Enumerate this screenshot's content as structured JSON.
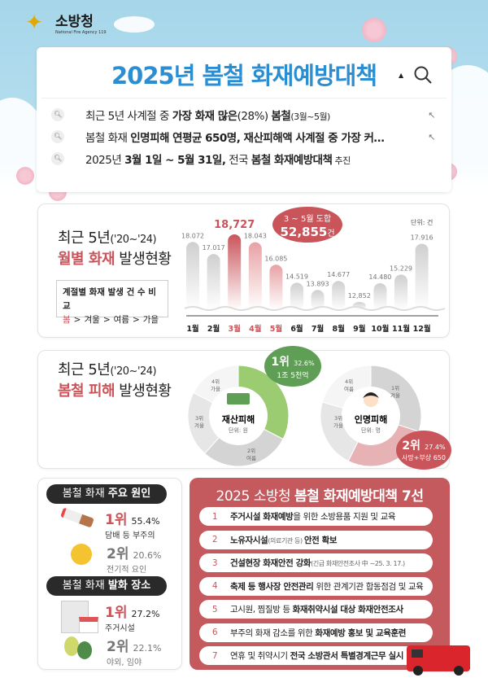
{
  "header": {
    "logo_ko": "소방청",
    "logo_en": "National Fire Agency 119"
  },
  "search": {
    "title": "2025년 봄철 화재예방대책",
    "lines": [
      {
        "pre": "최근 5년 사계절 중 ",
        "bold": "가장 화재 많은",
        "mid": "(28%) ",
        "bold2": "봄철",
        "post": "(3월~5월)"
      },
      {
        "pre": "봄철 화재 ",
        "bold": "인명피해 연평균 650명, 재산피해액 사계절 중 가장 커…",
        "mid": "",
        "bold2": "",
        "post": ""
      },
      {
        "pre": "2025년 ",
        "bold": "3월 1일 ~ 5월 31일,",
        "mid": " 전국 ",
        "bold2": "봄철 화재예방대책",
        "post": " 추진"
      }
    ]
  },
  "monthly": {
    "title_a": "최근 5년",
    "title_period": "('20~'24)",
    "title_red": "월별 화재",
    "title_rest": " 발생현황",
    "compare_title": "계절별 화재 발생 건 수 비교",
    "compare": [
      "봄",
      "겨울",
      "여름",
      "가을"
    ],
    "sep": ">",
    "bubble_top": "3 ~ 5월 도합",
    "bubble_value": "52,855",
    "bubble_unit": "건",
    "unit": "단위: 건"
  },
  "chart_data": [
    {
      "type": "bar",
      "categories": [
        "1월",
        "2월",
        "3월",
        "4월",
        "5월",
        "6월",
        "7월",
        "8월",
        "9월",
        "10월",
        "11월",
        "12월"
      ],
      "values": [
        18072,
        17017,
        18727,
        18043,
        16085,
        14519,
        13893,
        14677,
        12852,
        14480,
        15229,
        17916
      ],
      "value_labels": [
        "18.072",
        "17.017",
        "18,727",
        "18.043",
        "16.085",
        "14.519",
        "13.893",
        "14.677",
        "12,852",
        "14.480",
        "15.229",
        "17.916"
      ],
      "highlight": [
        "3월",
        "4월",
        "5월"
      ],
      "ylabel": "단위: 건"
    },
    {
      "type": "pie",
      "title": "재산피해",
      "unit": "단위: 원",
      "labels": [
        "1위 봄",
        "2위 여름",
        "3위 겨울",
        "4위 가을"
      ],
      "values": [
        32.6,
        29,
        21,
        17.4
      ],
      "known": "1위 32.6%"
    },
    {
      "type": "pie",
      "title": "인명피해",
      "unit": "단위: 명",
      "labels": [
        "1위 겨울",
        "2위 봄",
        "3위 가을",
        "4위 여름"
      ],
      "values": [
        30,
        27.4,
        22,
        20.6
      ],
      "known": "2위 27.4%"
    }
  ],
  "damage": {
    "title_a": "최근 5년",
    "title_period": "('20~'24)",
    "title_red": "봄철 피해",
    "title_rest": " 발생현황",
    "prop": {
      "label": "재산피해",
      "unit": "단위: 원",
      "seg_labels": [
        [
          "4위",
          "가을"
        ],
        [
          "3위",
          "겨울"
        ],
        [
          "2위",
          "여름"
        ]
      ],
      "rank": "1위",
      "pct": "32.6%",
      "amount": "1조 5천억"
    },
    "human": {
      "label": "인명피해",
      "unit": "단위: 명",
      "seg_labels": [
        [
          "4위",
          "여름"
        ],
        [
          "1위",
          "겨울"
        ],
        [
          "3위",
          "가을"
        ]
      ],
      "rank": "2위",
      "pct": "27.4%",
      "amount": "사망+부상 650"
    }
  },
  "causes": {
    "pill_a": "봄철 화재 ",
    "pill_b": "주요 원인",
    "items": [
      {
        "rank": "1위",
        "pct": "55.4%",
        "label": "담배 등 부주의"
      },
      {
        "rank": "2위",
        "pct": "20.6%",
        "label": "전기적 요인"
      }
    ]
  },
  "places": {
    "pill_a": "봄철 화재 ",
    "pill_b": "발화 장소",
    "items": [
      {
        "rank": "1위",
        "pct": "27.2%",
        "label": "주거시설"
      },
      {
        "rank": "2위",
        "pct": "22.1%",
        "label": "야외, 임야"
      }
    ]
  },
  "measures": {
    "title_a": "2025 소방청 ",
    "title_b": "봄철 화재예방대책 7선",
    "items": [
      {
        "n": "1",
        "b": "주거시설 화재예방",
        "t": "을 위한 소방용품 지원 및 교육",
        "s": ""
      },
      {
        "n": "2",
        "b": "노유자시설",
        "s": "(의료기관 등) ",
        "b2": "안전 확보"
      },
      {
        "n": "3",
        "b": "건설현장 화재안전 강화",
        "s": "(긴급 화재안전조사 中 ~25. 3. 17.)"
      },
      {
        "n": "4",
        "b": "축제 등 행사장 안전관리",
        "t": " 위한 관계기관 합동점검 및 교육"
      },
      {
        "n": "5",
        "t0": "고시원, 찜질방 등 ",
        "b": "화재취약시설 대상 화재안전조사"
      },
      {
        "n": "6",
        "t0": "부주의 화재 감소를 위한 ",
        "b": "화재예방 홍보 및 교육훈련"
      },
      {
        "n": "7",
        "t0": "연휴 및 취약시기 ",
        "b": "전국 소방관서 특별경계근무 실시"
      }
    ]
  },
  "colors": {
    "blue": "#2b8ed2",
    "red": "#c9555b",
    "green": "#9ccc72",
    "darkgreen": "#5f9e55"
  }
}
